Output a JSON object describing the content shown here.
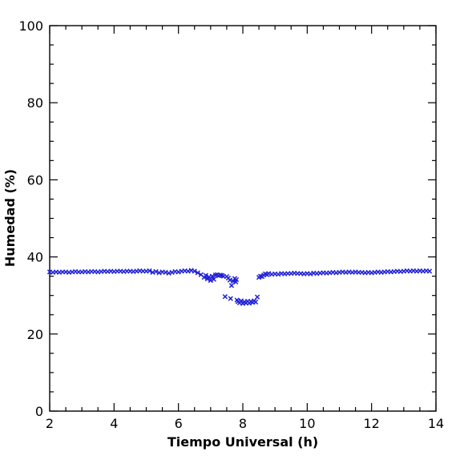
{
  "chart_data": {
    "type": "scatter",
    "title": "",
    "xlabel": "Tiempo Universal (h)",
    "ylabel": "Humedad (%)",
    "xlim": [
      2,
      14
    ],
    "ylim": [
      0,
      100
    ],
    "x_ticks": [
      2,
      4,
      6,
      8,
      10,
      12,
      14
    ],
    "y_ticks": [
      0,
      20,
      40,
      60,
      80,
      100
    ],
    "x_tick_labels": [
      "2",
      "4",
      "6",
      "8",
      "10",
      "12",
      "14"
    ],
    "y_tick_labels": [
      "0",
      "20",
      "40",
      "60",
      "80",
      "100"
    ],
    "marker": "x",
    "grid": false,
    "legend": "none",
    "colors": {
      "marker": "#1f1fd6",
      "axes": "#000000"
    },
    "series": [
      {
        "points": [
          [
            2.0,
            36.1
          ],
          [
            2.1,
            36.0
          ],
          [
            2.2,
            36.1
          ],
          [
            2.3,
            36.0
          ],
          [
            2.4,
            36.1
          ],
          [
            2.5,
            36.1
          ],
          [
            2.6,
            36.0
          ],
          [
            2.7,
            36.1
          ],
          [
            2.8,
            36.2
          ],
          [
            2.9,
            36.1
          ],
          [
            3.0,
            36.1
          ],
          [
            3.1,
            36.2
          ],
          [
            3.2,
            36.1
          ],
          [
            3.3,
            36.2
          ],
          [
            3.4,
            36.2
          ],
          [
            3.5,
            36.1
          ],
          [
            3.6,
            36.2
          ],
          [
            3.7,
            36.3
          ],
          [
            3.8,
            36.2
          ],
          [
            3.9,
            36.3
          ],
          [
            4.0,
            36.2
          ],
          [
            4.1,
            36.3
          ],
          [
            4.2,
            36.3
          ],
          [
            4.3,
            36.2
          ],
          [
            4.4,
            36.3
          ],
          [
            4.5,
            36.3
          ],
          [
            4.6,
            36.2
          ],
          [
            4.7,
            36.3
          ],
          [
            4.8,
            36.4
          ],
          [
            4.9,
            36.3
          ],
          [
            5.0,
            36.3
          ],
          [
            5.1,
            36.4
          ],
          [
            5.2,
            36.0
          ],
          [
            5.3,
            36.2
          ],
          [
            5.4,
            35.9
          ],
          [
            5.5,
            36.1
          ],
          [
            5.6,
            36.0
          ],
          [
            5.7,
            35.8
          ],
          [
            5.8,
            36.0
          ],
          [
            5.9,
            36.2
          ],
          [
            6.0,
            36.1
          ],
          [
            6.1,
            36.3
          ],
          [
            6.2,
            36.4
          ],
          [
            6.3,
            36.3
          ],
          [
            6.4,
            36.5
          ],
          [
            6.5,
            36.3
          ],
          [
            6.6,
            35.9
          ],
          [
            6.7,
            35.4
          ],
          [
            6.8,
            34.7
          ],
          [
            6.85,
            35.2
          ],
          [
            6.9,
            34.3
          ],
          [
            6.95,
            34.8
          ],
          [
            7.0,
            33.9
          ],
          [
            7.05,
            35.0
          ],
          [
            7.1,
            34.2
          ],
          [
            7.15,
            35.3
          ],
          [
            7.2,
            35.4
          ],
          [
            7.25,
            35.1
          ],
          [
            7.3,
            35.3
          ],
          [
            7.35,
            35.2
          ],
          [
            7.4,
            35.0
          ],
          [
            7.45,
            29.7
          ],
          [
            7.5,
            34.9
          ],
          [
            7.55,
            34.5
          ],
          [
            7.6,
            34.0
          ],
          [
            7.62,
            29.2
          ],
          [
            7.65,
            32.6
          ],
          [
            7.7,
            33.7
          ],
          [
            7.75,
            34.4
          ],
          [
            7.78,
            33.5
          ],
          [
            7.8,
            34.1
          ],
          [
            7.82,
            28.8
          ],
          [
            7.85,
            28.4
          ],
          [
            7.9,
            28.1
          ],
          [
            7.95,
            28.6
          ],
          [
            8.0,
            27.9
          ],
          [
            8.05,
            28.3
          ],
          [
            8.1,
            28.1
          ],
          [
            8.15,
            28.5
          ],
          [
            8.2,
            28.0
          ],
          [
            8.25,
            28.4
          ],
          [
            8.3,
            28.2
          ],
          [
            8.35,
            28.6
          ],
          [
            8.4,
            28.3
          ],
          [
            8.45,
            29.6
          ],
          [
            8.5,
            34.7
          ],
          [
            8.55,
            35.0
          ],
          [
            8.6,
            34.9
          ],
          [
            8.65,
            35.3
          ],
          [
            8.7,
            35.6
          ],
          [
            8.75,
            35.4
          ],
          [
            8.8,
            35.7
          ],
          [
            8.9,
            35.5
          ],
          [
            9.0,
            35.6
          ],
          [
            9.1,
            35.5
          ],
          [
            9.2,
            35.7
          ],
          [
            9.3,
            35.6
          ],
          [
            9.4,
            35.7
          ],
          [
            9.5,
            35.7
          ],
          [
            9.6,
            35.8
          ],
          [
            9.7,
            35.7
          ],
          [
            9.8,
            35.7
          ],
          [
            9.9,
            35.6
          ],
          [
            10.0,
            35.7
          ],
          [
            10.1,
            35.6
          ],
          [
            10.2,
            35.8
          ],
          [
            10.3,
            35.7
          ],
          [
            10.4,
            35.8
          ],
          [
            10.5,
            35.9
          ],
          [
            10.6,
            35.8
          ],
          [
            10.7,
            35.9
          ],
          [
            10.8,
            36.0
          ],
          [
            10.9,
            35.9
          ],
          [
            11.0,
            36.0
          ],
          [
            11.1,
            36.1
          ],
          [
            11.2,
            36.0
          ],
          [
            11.3,
            36.1
          ],
          [
            11.4,
            36.0
          ],
          [
            11.5,
            36.1
          ],
          [
            11.6,
            36.0
          ],
          [
            11.7,
            36.0
          ],
          [
            11.8,
            35.9
          ],
          [
            11.9,
            36.0
          ],
          [
            12.0,
            35.9
          ],
          [
            12.1,
            36.0
          ],
          [
            12.2,
            36.1
          ],
          [
            12.3,
            36.0
          ],
          [
            12.4,
            36.1
          ],
          [
            12.5,
            36.2
          ],
          [
            12.6,
            36.1
          ],
          [
            12.7,
            36.2
          ],
          [
            12.8,
            36.3
          ],
          [
            12.9,
            36.2
          ],
          [
            13.0,
            36.3
          ],
          [
            13.1,
            36.4
          ],
          [
            13.2,
            36.3
          ],
          [
            13.3,
            36.4
          ],
          [
            13.4,
            36.3
          ],
          [
            13.5,
            36.4
          ],
          [
            13.6,
            36.3
          ],
          [
            13.7,
            36.4
          ],
          [
            13.8,
            36.3
          ]
        ]
      }
    ]
  }
}
